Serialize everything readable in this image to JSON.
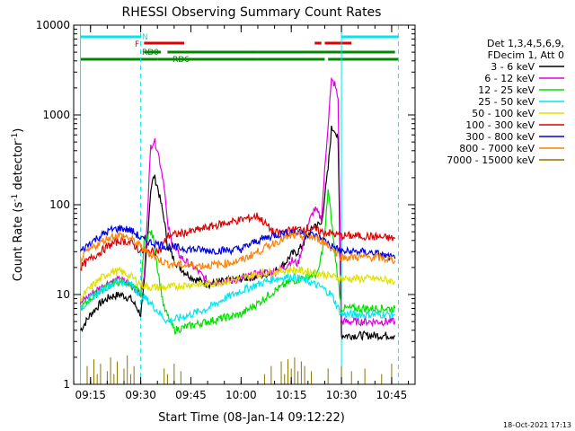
{
  "chart_data": {
    "type": "line",
    "title": "RHESSI Observing Summary Count Rates",
    "xlabel": "Start Time (08-Jan-14 09:12:22)",
    "ylabel_main": "Count Rate (s",
    "ylabel_sup": "-1",
    "ylabel_tail": " detector",
    "ylabel_end": ")",
    "yscale": "log",
    "ylim": [
      1,
      10000
    ],
    "x_ticks": [
      "09:15",
      "09:30",
      "09:45",
      "10:00",
      "10:15",
      "10:30",
      "10:45"
    ],
    "y_ticks": [
      "1",
      "10",
      "100",
      "1000",
      "10000"
    ],
    "legend_header": [
      "Det 1,3,4,5,6,9,",
      "FDecim 1, Att 0"
    ],
    "timestamp": "18-Oct-2021 17:13",
    "flags": {
      "N": {
        "label": "N",
        "color": "#00e5ee",
        "segments": [
          [
            "09:12",
            "09:30"
          ],
          [
            "10:30",
            "10:47"
          ]
        ]
      },
      "F": {
        "label": "F",
        "color": "#e00000",
        "segments": [
          [
            "09:31",
            "09:43"
          ],
          [
            "10:22",
            "10:24"
          ],
          [
            "10:25",
            "10:33"
          ]
        ]
      },
      "RD0": {
        "label": "RD0",
        "color": "#008800",
        "segments": [
          [
            "09:31",
            "09:36"
          ],
          [
            "09:38",
            "10:05"
          ],
          [
            "10:05",
            "10:25"
          ],
          [
            "10:25",
            "10:46"
          ]
        ]
      },
      "RD6": {
        "label": "RD6",
        "color": "#008800",
        "segments": [
          [
            "09:12",
            "09:35"
          ],
          [
            "09:35",
            "10:05"
          ],
          [
            "10:05",
            "10:25"
          ],
          [
            "10:26",
            "10:47"
          ]
        ]
      }
    },
    "series": [
      {
        "name": "3 - 6 keV",
        "color": "#000000",
        "points": [
          [
            "09:12",
            4
          ],
          [
            "09:15",
            6
          ],
          [
            "09:18",
            8
          ],
          [
            "09:21",
            9.5
          ],
          [
            "09:24",
            10
          ],
          [
            "09:27",
            9
          ],
          [
            "09:29",
            7
          ],
          [
            "09:30",
            6
          ],
          [
            "09:31",
            12
          ],
          [
            "09:33",
            150
          ],
          [
            "09:34",
            210
          ],
          [
            "09:35",
            160
          ],
          [
            "09:37",
            70
          ],
          [
            "09:38",
            35
          ],
          [
            "09:40",
            24
          ],
          [
            "09:43",
            18
          ],
          [
            "09:46",
            15
          ],
          [
            "09:50",
            13
          ],
          [
            "09:55",
            14
          ],
          [
            "10:00",
            15
          ],
          [
            "10:05",
            16
          ],
          [
            "10:10",
            18
          ],
          [
            "10:13",
            22
          ],
          [
            "10:15",
            28
          ],
          [
            "10:17",
            30
          ],
          [
            "10:20",
            45
          ],
          [
            "10:22",
            60
          ],
          [
            "10:24",
            60
          ],
          [
            "10:26",
            250
          ],
          [
            "10:27",
            700
          ],
          [
            "10:28",
            700
          ],
          [
            "10:29",
            500
          ],
          [
            "10:30",
            3.5
          ],
          [
            "10:35",
            3.5
          ],
          [
            "10:40",
            3.5
          ],
          [
            "10:46",
            3.5
          ]
        ]
      },
      {
        "name": "6 - 12 keV",
        "color": "#e000e0",
        "points": [
          [
            "09:12",
            8
          ],
          [
            "09:15",
            10
          ],
          [
            "09:18",
            12
          ],
          [
            "09:21",
            14
          ],
          [
            "09:24",
            14.5
          ],
          [
            "09:27",
            13
          ],
          [
            "09:29",
            11
          ],
          [
            "09:30",
            10
          ],
          [
            "09:31",
            15
          ],
          [
            "09:33",
            450
          ],
          [
            "09:34",
            520
          ],
          [
            "09:35",
            420
          ],
          [
            "09:37",
            170
          ],
          [
            "09:38",
            60
          ],
          [
            "09:40",
            32
          ],
          [
            "09:43",
            24
          ],
          [
            "09:46",
            20
          ],
          [
            "09:50",
            14
          ],
          [
            "09:55",
            14
          ],
          [
            "10:00",
            15
          ],
          [
            "10:05",
            17
          ],
          [
            "10:10",
            18
          ],
          [
            "10:13",
            20
          ],
          [
            "10:15",
            24
          ],
          [
            "10:17",
            22
          ],
          [
            "10:20",
            60
          ],
          [
            "10:22",
            90
          ],
          [
            "10:24",
            70
          ],
          [
            "10:26",
            800
          ],
          [
            "10:27",
            2400
          ],
          [
            "10:28",
            2200
          ],
          [
            "10:29",
            1500
          ],
          [
            "10:30",
            5
          ],
          [
            "10:35",
            5
          ],
          [
            "10:40",
            5
          ],
          [
            "10:46",
            5
          ]
        ]
      },
      {
        "name": "12 - 25 keV",
        "color": "#00e000",
        "points": [
          [
            "09:12",
            7
          ],
          [
            "09:15",
            9
          ],
          [
            "09:18",
            11
          ],
          [
            "09:21",
            13
          ],
          [
            "09:24",
            14
          ],
          [
            "09:27",
            13
          ],
          [
            "09:29",
            11
          ],
          [
            "09:30",
            10
          ],
          [
            "09:31",
            40
          ],
          [
            "09:33",
            50
          ],
          [
            "09:34",
            40
          ],
          [
            "09:35",
            20
          ],
          [
            "09:37",
            7
          ],
          [
            "09:40",
            4
          ],
          [
            "09:45",
            4.5
          ],
          [
            "09:50",
            5
          ],
          [
            "09:55",
            5.5
          ],
          [
            "10:00",
            6
          ],
          [
            "10:05",
            8
          ],
          [
            "10:10",
            11
          ],
          [
            "10:15",
            14
          ],
          [
            "10:20",
            16
          ],
          [
            "10:23",
            17
          ],
          [
            "10:25",
            45
          ],
          [
            "10:26",
            150
          ],
          [
            "10:28",
            30
          ],
          [
            "10:30",
            7
          ],
          [
            "10:35",
            7
          ],
          [
            "10:40",
            7
          ],
          [
            "10:46",
            7
          ]
        ]
      },
      {
        "name": "25 - 50 keV",
        "color": "#00e5ee",
        "points": [
          [
            "09:12",
            7
          ],
          [
            "09:15",
            9
          ],
          [
            "09:18",
            11
          ],
          [
            "09:21",
            13
          ],
          [
            "09:24",
            14
          ],
          [
            "09:27",
            13
          ],
          [
            "09:29",
            11
          ],
          [
            "09:30",
            10
          ],
          [
            "09:33",
            8
          ],
          [
            "09:36",
            6
          ],
          [
            "09:38",
            5
          ],
          [
            "09:45",
            6
          ],
          [
            "09:50",
            7
          ],
          [
            "09:55",
            9
          ],
          [
            "10:00",
            11
          ],
          [
            "10:05",
            13
          ],
          [
            "10:10",
            15
          ],
          [
            "10:15",
            16
          ],
          [
            "10:20",
            14
          ],
          [
            "10:24",
            12
          ],
          [
            "10:27",
            10
          ],
          [
            "10:30",
            6
          ],
          [
            "10:40",
            6
          ],
          [
            "10:46",
            6
          ]
        ]
      },
      {
        "name": "50 - 100 keV",
        "color": "#e0e000",
        "points": [
          [
            "09:12",
            9
          ],
          [
            "09:15",
            12
          ],
          [
            "09:18",
            15
          ],
          [
            "09:21",
            18
          ],
          [
            "09:24",
            18
          ],
          [
            "09:27",
            16
          ],
          [
            "09:29",
            14
          ],
          [
            "09:30",
            13
          ],
          [
            "09:33",
            12
          ],
          [
            "09:38",
            12
          ],
          [
            "09:45",
            13
          ],
          [
            "09:50",
            13
          ],
          [
            "09:55",
            14
          ],
          [
            "10:00",
            15
          ],
          [
            "10:05",
            17
          ],
          [
            "10:10",
            18
          ],
          [
            "10:15",
            19
          ],
          [
            "10:20",
            18
          ],
          [
            "10:24",
            17
          ],
          [
            "10:27",
            16
          ],
          [
            "10:30",
            15
          ],
          [
            "10:40",
            15
          ],
          [
            "10:46",
            14
          ]
        ]
      },
      {
        "name": "100 - 300 keV",
        "color": "#e00000",
        "points": [
          [
            "09:12",
            20
          ],
          [
            "09:15",
            25
          ],
          [
            "09:18",
            30
          ],
          [
            "09:21",
            36
          ],
          [
            "09:24",
            40
          ],
          [
            "09:27",
            38
          ],
          [
            "09:29",
            33
          ],
          [
            "09:30",
            30
          ],
          [
            "09:33",
            30
          ],
          [
            "09:36",
            31
          ],
          [
            "09:38",
            45
          ],
          [
            "09:45",
            50
          ],
          [
            "09:50",
            56
          ],
          [
            "09:55",
            62
          ],
          [
            "10:00",
            68
          ],
          [
            "10:05",
            75
          ],
          [
            "10:10",
            48
          ],
          [
            "10:15",
            52
          ],
          [
            "10:20",
            55
          ],
          [
            "10:24",
            50
          ],
          [
            "10:27",
            48
          ],
          [
            "10:30",
            45
          ],
          [
            "10:35",
            45
          ],
          [
            "10:40",
            44
          ],
          [
            "10:46",
            42
          ]
        ]
      },
      {
        "name": "300 - 800 keV",
        "color": "#0000e0",
        "points": [
          [
            "09:12",
            30
          ],
          [
            "09:15",
            38
          ],
          [
            "09:18",
            45
          ],
          [
            "09:21",
            52
          ],
          [
            "09:24",
            55
          ],
          [
            "09:27",
            52
          ],
          [
            "09:29",
            46
          ],
          [
            "09:30",
            42
          ],
          [
            "09:33",
            38
          ],
          [
            "09:36",
            36
          ],
          [
            "09:38",
            34
          ],
          [
            "09:45",
            32
          ],
          [
            "09:50",
            31
          ],
          [
            "09:55",
            31
          ],
          [
            "10:00",
            32
          ],
          [
            "10:05",
            40
          ],
          [
            "10:10",
            46
          ],
          [
            "10:15",
            50
          ],
          [
            "10:20",
            48
          ],
          [
            "10:24",
            42
          ],
          [
            "10:27",
            35
          ],
          [
            "10:30",
            30
          ],
          [
            "10:35",
            30
          ],
          [
            "10:40",
            29
          ],
          [
            "10:46",
            25
          ]
        ]
      },
      {
        "name": "800 - 7000 keV",
        "color": "#ff8000",
        "points": [
          [
            "09:12",
            25
          ],
          [
            "09:15",
            32
          ],
          [
            "09:18",
            38
          ],
          [
            "09:21",
            44
          ],
          [
            "09:24",
            46
          ],
          [
            "09:27",
            42
          ],
          [
            "09:29",
            37
          ],
          [
            "09:30",
            34
          ],
          [
            "09:33",
            28
          ],
          [
            "09:36",
            24
          ],
          [
            "09:38",
            22
          ],
          [
            "09:45",
            21
          ],
          [
            "09:50",
            21
          ],
          [
            "09:55",
            22
          ],
          [
            "10:00",
            24
          ],
          [
            "10:05",
            30
          ],
          [
            "10:10",
            38
          ],
          [
            "10:15",
            45
          ],
          [
            "10:20",
            45
          ],
          [
            "10:24",
            40
          ],
          [
            "10:27",
            33
          ],
          [
            "10:30",
            26
          ],
          [
            "10:35",
            26
          ],
          [
            "10:40",
            26
          ],
          [
            "10:46",
            24
          ]
        ]
      },
      {
        "name": "7000 - 15000 keV",
        "color": "#8b7500",
        "points": [
          [
            "09:14",
            1.6
          ],
          [
            "09:15",
            1.2
          ],
          [
            "09:16",
            1.9
          ],
          [
            "09:17",
            1.3
          ],
          [
            "09:18",
            1.7
          ],
          [
            "09:20",
            1.4
          ],
          [
            "09:21",
            2.0
          ],
          [
            "09:22",
            1.3
          ],
          [
            "09:23",
            1.8
          ],
          [
            "09:25",
            1.5
          ],
          [
            "09:26",
            2.1
          ],
          [
            "09:27",
            1.3
          ],
          [
            "09:28",
            1.6
          ],
          [
            "09:37",
            1.5
          ],
          [
            "09:38",
            1.3
          ],
          [
            "09:40",
            1.7
          ],
          [
            "09:42",
            1.4
          ],
          [
            "10:07",
            1.3
          ],
          [
            "10:09",
            1.6
          ],
          [
            "10:12",
            1.8
          ],
          [
            "10:13",
            1.3
          ],
          [
            "10:14",
            1.9
          ],
          [
            "10:15",
            1.5
          ],
          [
            "10:16",
            2.0
          ],
          [
            "10:17",
            1.4
          ],
          [
            "10:18",
            1.8
          ],
          [
            "10:19",
            1.6
          ],
          [
            "10:21",
            1.4
          ],
          [
            "10:26",
            1.5
          ],
          [
            "10:30",
            1.6
          ],
          [
            "10:33",
            1.4
          ],
          [
            "10:37",
            1.5
          ],
          [
            "10:42",
            1.3
          ],
          [
            "10:45",
            1.7
          ]
        ]
      }
    ],
    "vlines": [
      {
        "time": "09:12",
        "color": "#00e5ee",
        "style": "solid"
      },
      {
        "time": "09:30",
        "color": "#00e5ee",
        "style": "dashed"
      },
      {
        "time": "10:30",
        "color": "#00e5ee",
        "style": "solid"
      },
      {
        "time": "10:47",
        "color": "#00e5ee",
        "style": "dashed"
      }
    ]
  }
}
